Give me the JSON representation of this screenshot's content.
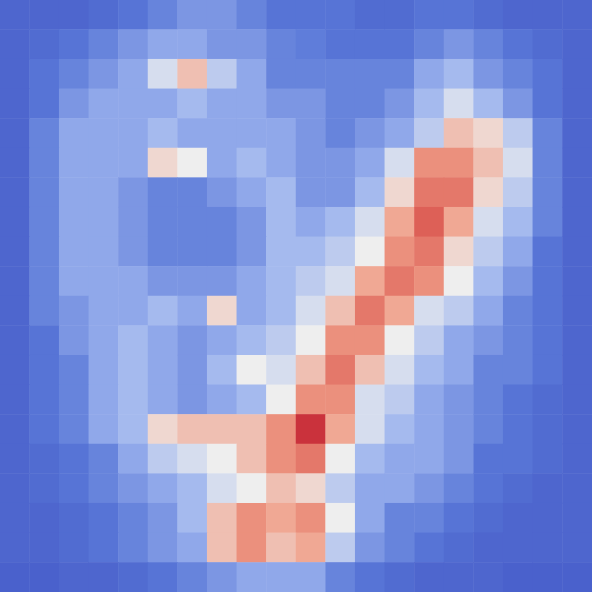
{
  "chart_data": {
    "type": "heatmap",
    "tick_labels": false,
    "zlim": [
      0,
      1
    ],
    "cells": [
      [
        0.1,
        0.1,
        0.1,
        0.12,
        0.15,
        0.2,
        0.25,
        0.25,
        0.2,
        0.15,
        0.15,
        0.15,
        0.12,
        0.12,
        0.15,
        0.15,
        0.12,
        0.1,
        0.1,
        0.1
      ],
      [
        0.1,
        0.12,
        0.15,
        0.2,
        0.25,
        0.3,
        0.3,
        0.25,
        0.25,
        0.2,
        0.18,
        0.15,
        0.15,
        0.15,
        0.2,
        0.25,
        0.2,
        0.15,
        0.12,
        0.1
      ],
      [
        0.1,
        0.15,
        0.2,
        0.25,
        0.3,
        0.45,
        0.6,
        0.4,
        0.3,
        0.2,
        0.2,
        0.2,
        0.2,
        0.2,
        0.3,
        0.35,
        0.25,
        0.2,
        0.15,
        0.1
      ],
      [
        0.1,
        0.15,
        0.25,
        0.3,
        0.3,
        0.3,
        0.35,
        0.3,
        0.3,
        0.25,
        0.25,
        0.2,
        0.2,
        0.25,
        0.35,
        0.45,
        0.35,
        0.25,
        0.15,
        0.1
      ],
      [
        0.1,
        0.2,
        0.3,
        0.3,
        0.3,
        0.35,
        0.3,
        0.3,
        0.3,
        0.3,
        0.25,
        0.2,
        0.25,
        0.3,
        0.4,
        0.6,
        0.55,
        0.4,
        0.2,
        0.1
      ],
      [
        0.1,
        0.2,
        0.3,
        0.3,
        0.3,
        0.55,
        0.5,
        0.3,
        0.35,
        0.3,
        0.25,
        0.25,
        0.3,
        0.45,
        0.7,
        0.7,
        0.6,
        0.45,
        0.2,
        0.1
      ],
      [
        0.1,
        0.2,
        0.3,
        0.3,
        0.25,
        0.2,
        0.2,
        0.25,
        0.3,
        0.35,
        0.25,
        0.25,
        0.35,
        0.55,
        0.75,
        0.75,
        0.55,
        0.4,
        0.2,
        0.1
      ],
      [
        0.1,
        0.2,
        0.3,
        0.3,
        0.25,
        0.2,
        0.2,
        0.2,
        0.25,
        0.35,
        0.3,
        0.35,
        0.45,
        0.65,
        0.8,
        0.65,
        0.45,
        0.35,
        0.2,
        0.1
      ],
      [
        0.1,
        0.2,
        0.3,
        0.3,
        0.25,
        0.2,
        0.2,
        0.2,
        0.25,
        0.35,
        0.35,
        0.4,
        0.5,
        0.7,
        0.75,
        0.55,
        0.4,
        0.3,
        0.15,
        0.1
      ],
      [
        0.1,
        0.2,
        0.3,
        0.3,
        0.3,
        0.25,
        0.25,
        0.25,
        0.3,
        0.35,
        0.4,
        0.45,
        0.65,
        0.75,
        0.7,
        0.5,
        0.35,
        0.25,
        0.15,
        0.1
      ],
      [
        0.1,
        0.2,
        0.25,
        0.3,
        0.3,
        0.35,
        0.3,
        0.55,
        0.3,
        0.35,
        0.45,
        0.6,
        0.75,
        0.65,
        0.45,
        0.4,
        0.3,
        0.2,
        0.15,
        0.1
      ],
      [
        0.1,
        0.15,
        0.25,
        0.3,
        0.35,
        0.3,
        0.25,
        0.3,
        0.35,
        0.4,
        0.5,
        0.7,
        0.7,
        0.5,
        0.4,
        0.3,
        0.25,
        0.2,
        0.15,
        0.1
      ],
      [
        0.1,
        0.15,
        0.2,
        0.3,
        0.35,
        0.3,
        0.25,
        0.35,
        0.5,
        0.45,
        0.6,
        0.75,
        0.6,
        0.45,
        0.35,
        0.3,
        0.2,
        0.2,
        0.15,
        0.1
      ],
      [
        0.1,
        0.15,
        0.2,
        0.3,
        0.35,
        0.3,
        0.25,
        0.3,
        0.35,
        0.5,
        0.7,
        0.7,
        0.45,
        0.4,
        0.3,
        0.25,
        0.2,
        0.15,
        0.12,
        0.1
      ],
      [
        0.1,
        0.15,
        0.2,
        0.3,
        0.35,
        0.55,
        0.6,
        0.6,
        0.6,
        0.7,
        0.9,
        0.65,
        0.45,
        0.35,
        0.3,
        0.25,
        0.2,
        0.15,
        0.12,
        0.1
      ],
      [
        0.1,
        0.12,
        0.15,
        0.2,
        0.3,
        0.4,
        0.45,
        0.5,
        0.6,
        0.7,
        0.75,
        0.5,
        0.35,
        0.3,
        0.3,
        0.25,
        0.15,
        0.15,
        0.12,
        0.1
      ],
      [
        0.1,
        0.12,
        0.15,
        0.2,
        0.25,
        0.3,
        0.35,
        0.45,
        0.5,
        0.6,
        0.55,
        0.4,
        0.3,
        0.3,
        0.25,
        0.2,
        0.15,
        0.12,
        0.1,
        0.1
      ],
      [
        0.1,
        0.1,
        0.12,
        0.15,
        0.2,
        0.25,
        0.35,
        0.6,
        0.7,
        0.65,
        0.7,
        0.5,
        0.3,
        0.2,
        0.2,
        0.15,
        0.12,
        0.1,
        0.1,
        0.1
      ],
      [
        0.1,
        0.1,
        0.12,
        0.15,
        0.2,
        0.25,
        0.3,
        0.6,
        0.7,
        0.6,
        0.65,
        0.4,
        0.25,
        0.2,
        0.15,
        0.12,
        0.1,
        0.1,
        0.1,
        0.1
      ],
      [
        0.08,
        0.08,
        0.1,
        0.1,
        0.12,
        0.15,
        0.2,
        0.25,
        0.3,
        0.3,
        0.3,
        0.2,
        0.15,
        0.12,
        0.1,
        0.1,
        0.1,
        0.08,
        0.08,
        0.08
      ]
    ]
  }
}
